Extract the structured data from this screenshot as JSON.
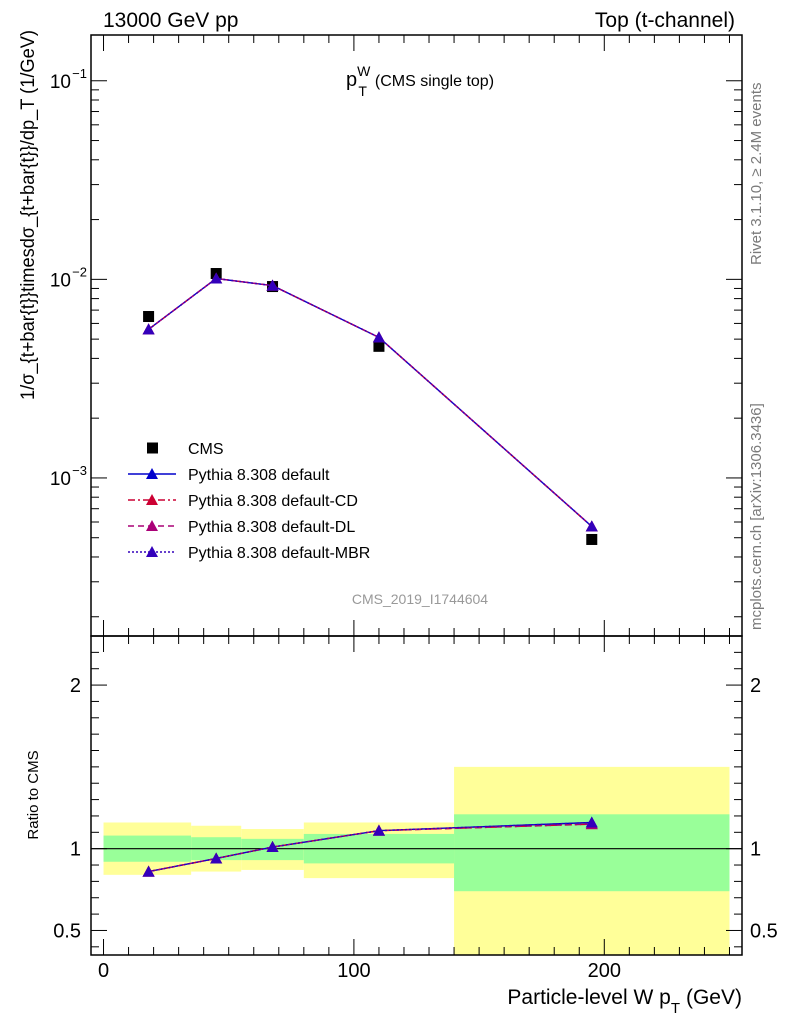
{
  "header": {
    "energy_label": "13000 GeV pp",
    "process_label": "Top (t-channel)"
  },
  "side_notes": {
    "rivet": "Rivet 3.1.10, ≥ 2.4M events",
    "mcplots": "mcplots.cern.ch [arXiv:1306.3436]"
  },
  "chart_data": [
    {
      "type": "scatter",
      "title_main": "p",
      "title_sup": "W",
      "title_sub": "T",
      "title_rest": "(CMS single top)",
      "analysis_id": "CMS_2019_I1744604",
      "ylabel": "1/σ_{t+bar{t}}timesdσ_{t+bar{t}}/dp_T (1/GeV)",
      "yscale": "log",
      "ylim": [
        0.00016,
        0.17
      ],
      "xlim": [
        -5,
        255
      ],
      "y_ticks": [
        {
          "value": 0.1,
          "base": "10",
          "exp": "−1"
        },
        {
          "value": 0.01,
          "base": "10",
          "exp": "−2"
        },
        {
          "value": 0.001,
          "base": "10",
          "exp": "−3"
        }
      ],
      "legend_position": "bottom-left",
      "series": [
        {
          "name": "CMS",
          "marker": "square",
          "color": "#000000",
          "x": [
            18,
            45,
            67.5,
            110,
            195
          ],
          "y": [
            0.0065,
            0.0107,
            0.0092,
            0.0046,
            0.00049
          ]
        },
        {
          "name": "Pythia 8.308 default",
          "marker": "triangle",
          "line": "solid",
          "color": "#0000cc",
          "x": [
            18,
            45,
            67.5,
            110,
            195
          ],
          "y": [
            0.0056,
            0.0101,
            0.0093,
            0.0051,
            0.00057
          ]
        },
        {
          "name": "Pythia 8.308 default-CD",
          "marker": "triangle",
          "line": "dashdot",
          "color": "#cc0033",
          "x": [
            18,
            45,
            67.5,
            110,
            195
          ],
          "y": [
            0.0056,
            0.0101,
            0.0093,
            0.0051,
            0.00057
          ]
        },
        {
          "name": "Pythia 8.308 default-DL",
          "marker": "triangle",
          "line": "dashed",
          "color": "#aa0077",
          "x": [
            18,
            45,
            67.5,
            110,
            195
          ],
          "y": [
            0.0056,
            0.0101,
            0.0093,
            0.0051,
            0.00057
          ]
        },
        {
          "name": "Pythia 8.308 default-MBR",
          "marker": "triangle",
          "line": "dotted",
          "color": "#3300bb",
          "x": [
            18,
            45,
            67.5,
            110,
            195
          ],
          "y": [
            0.0056,
            0.0101,
            0.0093,
            0.0051,
            0.00057
          ]
        }
      ]
    },
    {
      "type": "line",
      "ylabel": "Ratio to CMS",
      "xlabel_main": "Particle-level W p",
      "xlabel_sub": "T",
      "xlabel_rest": "(GeV)",
      "ylim": [
        0.35,
        2.3
      ],
      "xlim": [
        -5,
        255
      ],
      "x_ticks": [
        0,
        100,
        200
      ],
      "y_ticks": [
        0.5,
        1,
        2
      ],
      "bins": [
        {
          "lo": 0,
          "hi": 35,
          "stat": [
            0.92,
            1.08
          ],
          "total": [
            0.84,
            1.16
          ]
        },
        {
          "lo": 35,
          "hi": 55,
          "stat": [
            0.93,
            1.07
          ],
          "total": [
            0.86,
            1.14
          ]
        },
        {
          "lo": 55,
          "hi": 80,
          "stat": [
            0.93,
            1.06
          ],
          "total": [
            0.87,
            1.12
          ]
        },
        {
          "lo": 80,
          "hi": 140,
          "stat": [
            0.91,
            1.09
          ],
          "total": [
            0.82,
            1.16
          ]
        },
        {
          "lo": 140,
          "hi": 250,
          "stat": [
            0.74,
            1.21
          ],
          "total": [
            0.35,
            1.5
          ]
        }
      ],
      "series": [
        {
          "name": "Pythia 8.308 default",
          "color": "#0000cc",
          "line": "solid",
          "x": [
            18,
            45,
            67.5,
            110,
            195
          ],
          "y": [
            0.86,
            0.94,
            1.01,
            1.11,
            1.16
          ]
        },
        {
          "name": "Pythia 8.308 default-CD",
          "color": "#cc0033",
          "line": "dashdot",
          "x": [
            18,
            45,
            67.5,
            110,
            195
          ],
          "y": [
            0.86,
            0.94,
            1.01,
            1.11,
            1.15
          ]
        },
        {
          "name": "Pythia 8.308 default-DL",
          "color": "#aa0077",
          "line": "dashed",
          "x": [
            18,
            45,
            67.5,
            110,
            195
          ],
          "y": [
            0.86,
            0.94,
            1.01,
            1.11,
            1.15
          ]
        },
        {
          "name": "Pythia 8.308 default-MBR",
          "color": "#3300bb",
          "line": "dotted",
          "x": [
            18,
            45,
            67.5,
            110,
            195
          ],
          "y": [
            0.86,
            0.94,
            1.01,
            1.11,
            1.16
          ]
        }
      ]
    }
  ],
  "colors": {
    "band_stat": "#99ff99",
    "band_total": "#ffff99"
  }
}
